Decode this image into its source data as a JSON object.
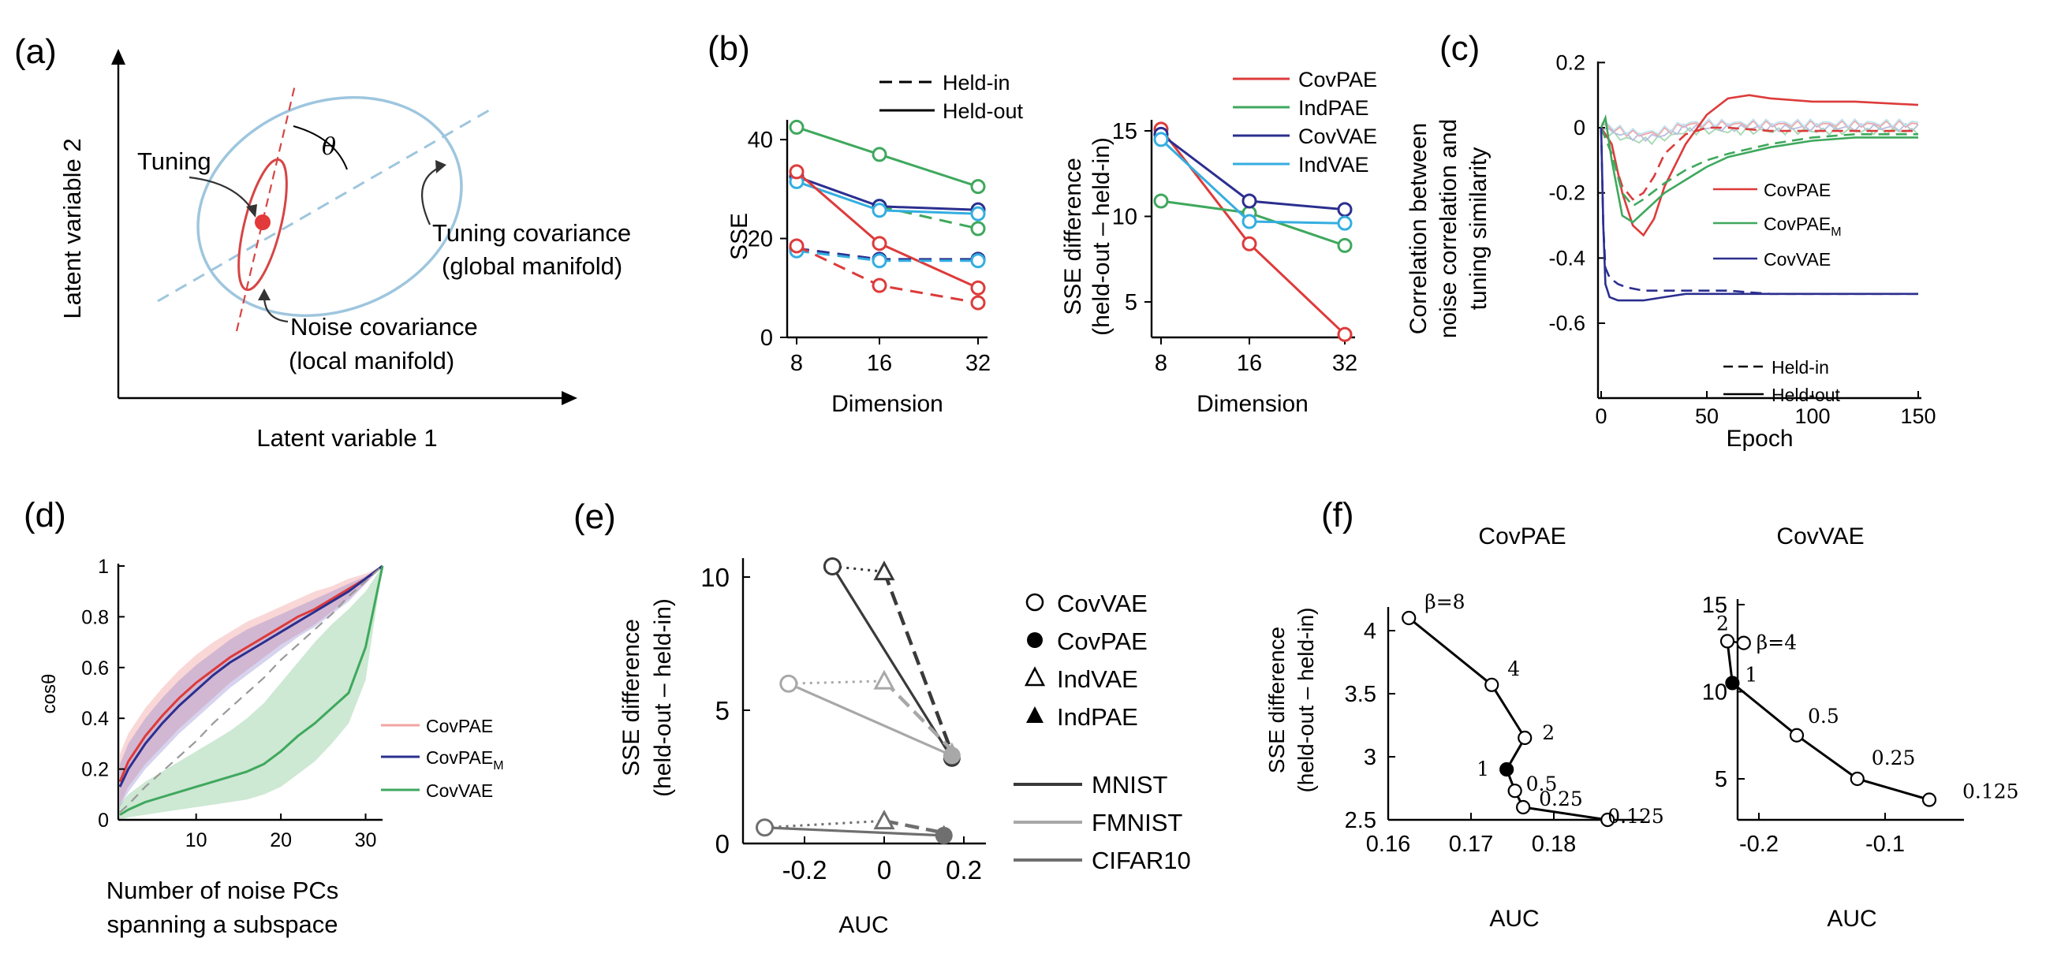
{
  "colors": {
    "covpae": "#dd3b3b",
    "indpae": "#3fa85d",
    "covvae": "#2b2f8f",
    "indvae": "#34aee0",
    "ellipse_blue": "#9ec6de",
    "ellipse_red": "#d64545",
    "mnist": "#3a3a3a",
    "fmnist": "#a8a8a8",
    "cifar": "#6f6f6f"
  },
  "panel_a": {
    "label": "(a)",
    "ylabel": "Latent variable 2",
    "xlabel": "Latent variable 1",
    "tuning_label": "Tuning",
    "theta_label": "θ",
    "tuning_cov_line1": "Tuning covariance",
    "tuning_cov_line2": "(global manifold)",
    "noise_cov_line1": "Noise covariance",
    "noise_cov_line2": "(local manifold)"
  },
  "panel_b": {
    "label": "(b)",
    "style_legend": [
      {
        "name": "Held-in",
        "style": "dashed"
      },
      {
        "name": "Held-out",
        "style": "solid"
      }
    ],
    "model_legend": [
      {
        "name": "CovPAE",
        "color_key": "covpae"
      },
      {
        "name": "IndPAE",
        "color_key": "indpae"
      },
      {
        "name": "CovVAE",
        "color_key": "covvae"
      },
      {
        "name": "IndVAE",
        "color_key": "indvae"
      }
    ]
  },
  "chart_data": [
    {
      "id": "b_left",
      "type": "line",
      "xlabel": "Dimension",
      "ylabel": "SSE",
      "x": [
        8,
        16,
        32
      ],
      "x_ticks": [
        "8",
        "16",
        "32"
      ],
      "y_ticks": [
        "0",
        "20",
        "40"
      ],
      "ylim": [
        0,
        44
      ],
      "series": [
        {
          "model": "IndPAE",
          "split": "Held-out",
          "color_key": "indpae",
          "style": "solid",
          "values": [
            42.5,
            37,
            30.5
          ]
        },
        {
          "model": "IndPAE",
          "split": "Held-in",
          "color_key": "indpae",
          "style": "dashed",
          "values": [
            null,
            26.5,
            22
          ]
        },
        {
          "model": "CovVAE",
          "split": "Held-out",
          "color_key": "covvae",
          "style": "solid",
          "values": [
            32.5,
            26.5,
            25.8
          ]
        },
        {
          "model": "IndVAE",
          "split": "Held-out",
          "color_key": "indvae",
          "style": "solid",
          "values": [
            31.5,
            25.7,
            25
          ]
        },
        {
          "model": "CovPAE",
          "split": "Held-out",
          "color_key": "covpae",
          "style": "solid",
          "values": [
            33.5,
            19,
            10
          ]
        },
        {
          "model": "CovVAE",
          "split": "Held-in",
          "color_key": "covvae",
          "style": "dashed",
          "values": [
            18,
            15.8,
            15.8
          ]
        },
        {
          "model": "IndVAE",
          "split": "Held-in",
          "color_key": "indvae",
          "style": "dashed",
          "values": [
            17.5,
            15.5,
            15.5
          ]
        },
        {
          "model": "CovPAE",
          "split": "Held-in",
          "color_key": "covpae",
          "style": "dashed",
          "values": [
            18.5,
            10.5,
            7
          ]
        }
      ]
    },
    {
      "id": "b_right",
      "type": "line",
      "xlabel": "Dimension",
      "ylabel_line1": "SSE difference",
      "ylabel_line2": "(held-out – held-in)",
      "x": [
        8,
        16,
        32
      ],
      "x_ticks": [
        "8",
        "16",
        "32"
      ],
      "y_ticks": [
        "5",
        "10",
        "15"
      ],
      "ylim": [
        3,
        15.6
      ],
      "series": [
        {
          "model": "CovPAE",
          "color_key": "covpae",
          "values": [
            15.1,
            8.4,
            3.1
          ]
        },
        {
          "model": "IndPAE",
          "color_key": "indpae",
          "values": [
            10.9,
            10.2,
            8.3
          ]
        },
        {
          "model": "CovVAE",
          "color_key": "covvae",
          "values": [
            14.8,
            10.9,
            10.4
          ]
        },
        {
          "model": "IndVAE",
          "color_key": "indvae",
          "values": [
            14.5,
            9.7,
            9.6
          ]
        }
      ]
    },
    {
      "id": "c",
      "type": "line",
      "label": "(c)",
      "xlabel": "Epoch",
      "ylabel_line1": "Correlation between",
      "ylabel_line2": "noise correlation and",
      "ylabel_line3": "tuning similarity",
      "x_ticks": [
        "0",
        "50",
        "100",
        "150"
      ],
      "y_ticks": [
        "0.2",
        "0",
        "-0.2",
        "-0.4",
        "-0.6"
      ],
      "xlim": [
        0,
        150
      ],
      "ylim": [
        -0.8,
        0.22
      ],
      "legend": [
        {
          "name": "CovPAE",
          "color_key": "covpae"
        },
        {
          "name": "CovPAE",
          "sub": "M",
          "color_key": "indpae"
        },
        {
          "name": "CovVAE",
          "color_key": "covvae"
        }
      ],
      "style_legend": [
        {
          "name": "Held-in",
          "style": "dashed"
        },
        {
          "name": "Held-out",
          "style": "solid"
        }
      ],
      "series": [
        {
          "model": "CovPAE",
          "style": "solid",
          "color_key": "covpae",
          "x": [
            0,
            5,
            10,
            15,
            20,
            25,
            30,
            40,
            50,
            60,
            70,
            80,
            100,
            120,
            150
          ],
          "values": [
            0,
            -0.05,
            -0.2,
            -0.3,
            -0.33,
            -0.28,
            -0.18,
            -0.05,
            0.04,
            0.09,
            0.1,
            0.09,
            0.08,
            0.08,
            0.07
          ]
        },
        {
          "model": "CovPAE",
          "style": "dashed",
          "color_key": "covpae",
          "x": [
            0,
            5,
            10,
            15,
            20,
            25,
            30,
            40,
            50,
            60,
            80,
            100,
            150
          ],
          "values": [
            0,
            -0.08,
            -0.18,
            -0.22,
            -0.2,
            -0.15,
            -0.08,
            -0.02,
            0,
            0,
            -0.01,
            -0.01,
            -0.01
          ]
        },
        {
          "model": "CovPAE_M",
          "style": "solid",
          "color_key": "indpae",
          "x": [
            0,
            2,
            5,
            10,
            15,
            20,
            30,
            40,
            50,
            60,
            80,
            100,
            120,
            150
          ],
          "values": [
            0,
            0.03,
            -0.1,
            -0.27,
            -0.29,
            -0.26,
            -0.2,
            -0.16,
            -0.12,
            -0.09,
            -0.06,
            -0.04,
            -0.03,
            -0.03
          ]
        },
        {
          "model": "CovPAE_M",
          "style": "dashed",
          "color_key": "indpae",
          "x": [
            0,
            5,
            10,
            15,
            20,
            30,
            40,
            50,
            60,
            80,
            100,
            120,
            150
          ],
          "values": [
            0,
            -0.08,
            -0.2,
            -0.24,
            -0.22,
            -0.17,
            -0.13,
            -0.1,
            -0.08,
            -0.05,
            -0.03,
            -0.02,
            -0.02
          ]
        },
        {
          "model": "CovVAE",
          "style": "solid",
          "color_key": "covvae",
          "x": [
            0,
            1,
            2,
            4,
            8,
            12,
            20,
            30,
            40,
            60,
            80,
            100,
            150
          ],
          "values": [
            0,
            -0.3,
            -0.48,
            -0.52,
            -0.53,
            -0.53,
            -0.53,
            -0.52,
            -0.51,
            -0.51,
            -0.51,
            -0.51,
            -0.51
          ]
        },
        {
          "model": "CovVAE",
          "style": "dashed",
          "color_key": "covvae",
          "x": [
            0,
            1,
            2,
            4,
            8,
            12,
            20,
            30,
            40,
            60,
            80,
            100,
            150
          ],
          "values": [
            0,
            -0.3,
            -0.43,
            -0.46,
            -0.48,
            -0.49,
            -0.5,
            -0.5,
            -0.5,
            -0.5,
            -0.51,
            -0.51,
            -0.51
          ]
        }
      ]
    },
    {
      "id": "d",
      "type": "line",
      "label": "(d)",
      "xlabel_line1": "Number of noise PCs",
      "xlabel_line2": "spanning a subspace",
      "ylabel": "cosθ",
      "x_ticks": [
        "10",
        "20",
        "30"
      ],
      "y_ticks": [
        "0",
        "0.2",
        "0.4",
        "0.6",
        "0.8",
        "1"
      ],
      "xlim": [
        1,
        32
      ],
      "ylim": [
        0,
        1
      ],
      "legend": [
        {
          "name": "CovPAE",
          "color_key": "covpae"
        },
        {
          "name": "CovPAE",
          "sub": "M",
          "color_key": "covvae"
        },
        {
          "name": "CovVAE",
          "color_key": "indpae"
        }
      ],
      "x": [
        1,
        2,
        4,
        6,
        8,
        10,
        12,
        14,
        16,
        18,
        20,
        22,
        24,
        26,
        28,
        30,
        32
      ],
      "series": [
        {
          "model": "CovPAE",
          "color_key": "covpae",
          "values": [
            0.15,
            0.23,
            0.33,
            0.41,
            0.48,
            0.54,
            0.59,
            0.64,
            0.68,
            0.72,
            0.76,
            0.8,
            0.83,
            0.87,
            0.91,
            0.95,
            1
          ],
          "lower": [
            0.06,
            0.13,
            0.22,
            0.29,
            0.36,
            0.42,
            0.48,
            0.54,
            0.59,
            0.64,
            0.69,
            0.73,
            0.77,
            0.82,
            0.87,
            0.93,
            1
          ],
          "upper": [
            0.26,
            0.34,
            0.44,
            0.52,
            0.59,
            0.65,
            0.7,
            0.74,
            0.78,
            0.81,
            0.84,
            0.87,
            0.9,
            0.92,
            0.95,
            0.97,
            1
          ]
        },
        {
          "model": "CovPAE_M",
          "color_key": "covvae",
          "values": [
            0.13,
            0.2,
            0.3,
            0.38,
            0.45,
            0.51,
            0.57,
            0.62,
            0.66,
            0.7,
            0.74,
            0.78,
            0.82,
            0.86,
            0.9,
            0.95,
            1
          ],
          "lower": [
            0.05,
            0.11,
            0.2,
            0.27,
            0.34,
            0.4,
            0.46,
            0.52,
            0.57,
            0.62,
            0.67,
            0.72,
            0.76,
            0.81,
            0.86,
            0.93,
            1
          ],
          "upper": [
            0.22,
            0.3,
            0.4,
            0.48,
            0.55,
            0.61,
            0.66,
            0.71,
            0.75,
            0.78,
            0.81,
            0.84,
            0.87,
            0.9,
            0.93,
            0.96,
            1
          ]
        },
        {
          "model": "CovVAE",
          "color_key": "indpae",
          "values": [
            0.02,
            0.04,
            0.07,
            0.09,
            0.11,
            0.13,
            0.15,
            0.17,
            0.19,
            0.22,
            0.27,
            0.33,
            0.38,
            0.44,
            0.5,
            0.68,
            1
          ],
          "lower": [
            0,
            0.01,
            0.02,
            0.03,
            0.04,
            0.05,
            0.06,
            0.07,
            0.08,
            0.1,
            0.13,
            0.18,
            0.23,
            0.3,
            0.38,
            0.55,
            1
          ],
          "upper": [
            0.06,
            0.1,
            0.15,
            0.19,
            0.23,
            0.27,
            0.31,
            0.35,
            0.4,
            0.46,
            0.54,
            0.62,
            0.7,
            0.77,
            0.83,
            0.9,
            1
          ]
        },
        {
          "model": "reference",
          "style": "dashed",
          "color": "#9a9a9a",
          "values": [
            0.03,
            0.06,
            0.13,
            0.19,
            0.25,
            0.31,
            0.38,
            0.44,
            0.5,
            0.56,
            0.63,
            0.69,
            0.75,
            0.81,
            0.88,
            0.94,
            1
          ]
        }
      ]
    },
    {
      "id": "e",
      "type": "scatter",
      "label": "(e)",
      "xlabel": "AUC",
      "ylabel_line1": "SSE difference",
      "ylabel_line2": "(held-out – held-in)",
      "x_ticks": [
        "-0.2",
        "0",
        "0.2"
      ],
      "y_ticks": [
        "0",
        "5",
        "10"
      ],
      "xlim": [
        -0.33,
        0.29
      ],
      "ylim": [
        0,
        10.8
      ],
      "marker_legend": [
        {
          "name": "CovVAE",
          "marker": "circle-open"
        },
        {
          "name": "CovPAE",
          "marker": "circle-filled"
        },
        {
          "name": "IndVAE",
          "marker": "triangle-open"
        },
        {
          "name": "IndPAE",
          "marker": "triangle-filled"
        }
      ],
      "dataset_legend": [
        {
          "name": "MNIST",
          "color_key": "mnist"
        },
        {
          "name": "FMNIST",
          "color_key": "fmnist"
        },
        {
          "name": "CIFAR10",
          "color_key": "cifar"
        }
      ],
      "groups": [
        {
          "dataset": "MNIST",
          "color_key": "mnist",
          "covvae": [
            -0.13,
            10.4
          ],
          "covpae": [
            0.17,
            3.2
          ],
          "indvae": [
            0,
            10.2
          ],
          "indpae": [
            0.17,
            3.4
          ]
        },
        {
          "dataset": "FMNIST",
          "color_key": "fmnist",
          "covvae": [
            -0.24,
            6.0
          ],
          "covpae": [
            0.17,
            3.3
          ],
          "indvae": [
            0,
            6.1
          ],
          "indpae": [
            0.17,
            3.5
          ]
        },
        {
          "dataset": "CIFAR10",
          "color_key": "cifar",
          "covvae": [
            -0.3,
            0.6
          ],
          "covpae": [
            0.15,
            0.3
          ],
          "indvae": [
            0,
            0.85
          ],
          "indpae": [
            0.15,
            0.4
          ]
        }
      ]
    },
    {
      "id": "f_left",
      "type": "line",
      "label": "(f)",
      "title": "CovPAE",
      "xlabel": "AUC",
      "ylabel_line1": "SSE difference",
      "ylabel_line2": "(held-out – held-in)",
      "x_ticks": [
        "0.16",
        "0.17",
        "0.18"
      ],
      "y_ticks": [
        "2.5",
        "3",
        "3.5",
        "4"
      ],
      "xlim": [
        0.16,
        0.187
      ],
      "ylim": [
        2.5,
        4.15
      ],
      "points": [
        {
          "beta": "β=8",
          "x": 0.1625,
          "y": 4.1,
          "filled": false
        },
        {
          "beta": "4",
          "x": 0.1725,
          "y": 3.57,
          "filled": false
        },
        {
          "beta": "2",
          "x": 0.1765,
          "y": 3.15,
          "filled": false
        },
        {
          "beta": "1",
          "x": 0.1743,
          "y": 2.9,
          "filled": true
        },
        {
          "beta": "0.5",
          "x": 0.1753,
          "y": 2.73,
          "filled": false
        },
        {
          "beta": "0.25",
          "x": 0.1763,
          "y": 2.6,
          "filled": false
        },
        {
          "beta": "0.125",
          "x": 0.1865,
          "y": 2.5,
          "filled": false
        }
      ]
    },
    {
      "id": "f_right",
      "type": "line",
      "title": "CovVAE",
      "xlabel": "AUC",
      "x_ticks": [
        "-0.2",
        "-0.1"
      ],
      "y_ticks": [
        "5",
        "10",
        "15"
      ],
      "xlim": [
        -0.232,
        -0.055
      ],
      "ylim": [
        3.5,
        15.5
      ],
      "points": [
        {
          "beta": "β=4",
          "x": -0.212,
          "y": 12.8,
          "filled": false
        },
        {
          "beta": "2",
          "x": -0.225,
          "y": 12.9,
          "filled": false
        },
        {
          "beta": "1",
          "x": -0.221,
          "y": 10.5,
          "filled": true
        },
        {
          "beta": "0.5",
          "x": -0.17,
          "y": 7.5,
          "filled": false
        },
        {
          "beta": "0.25",
          "x": -0.122,
          "y": 5.0,
          "filled": false
        },
        {
          "beta": "0.125",
          "x": -0.065,
          "y": 3.8,
          "filled": false
        }
      ]
    }
  ]
}
